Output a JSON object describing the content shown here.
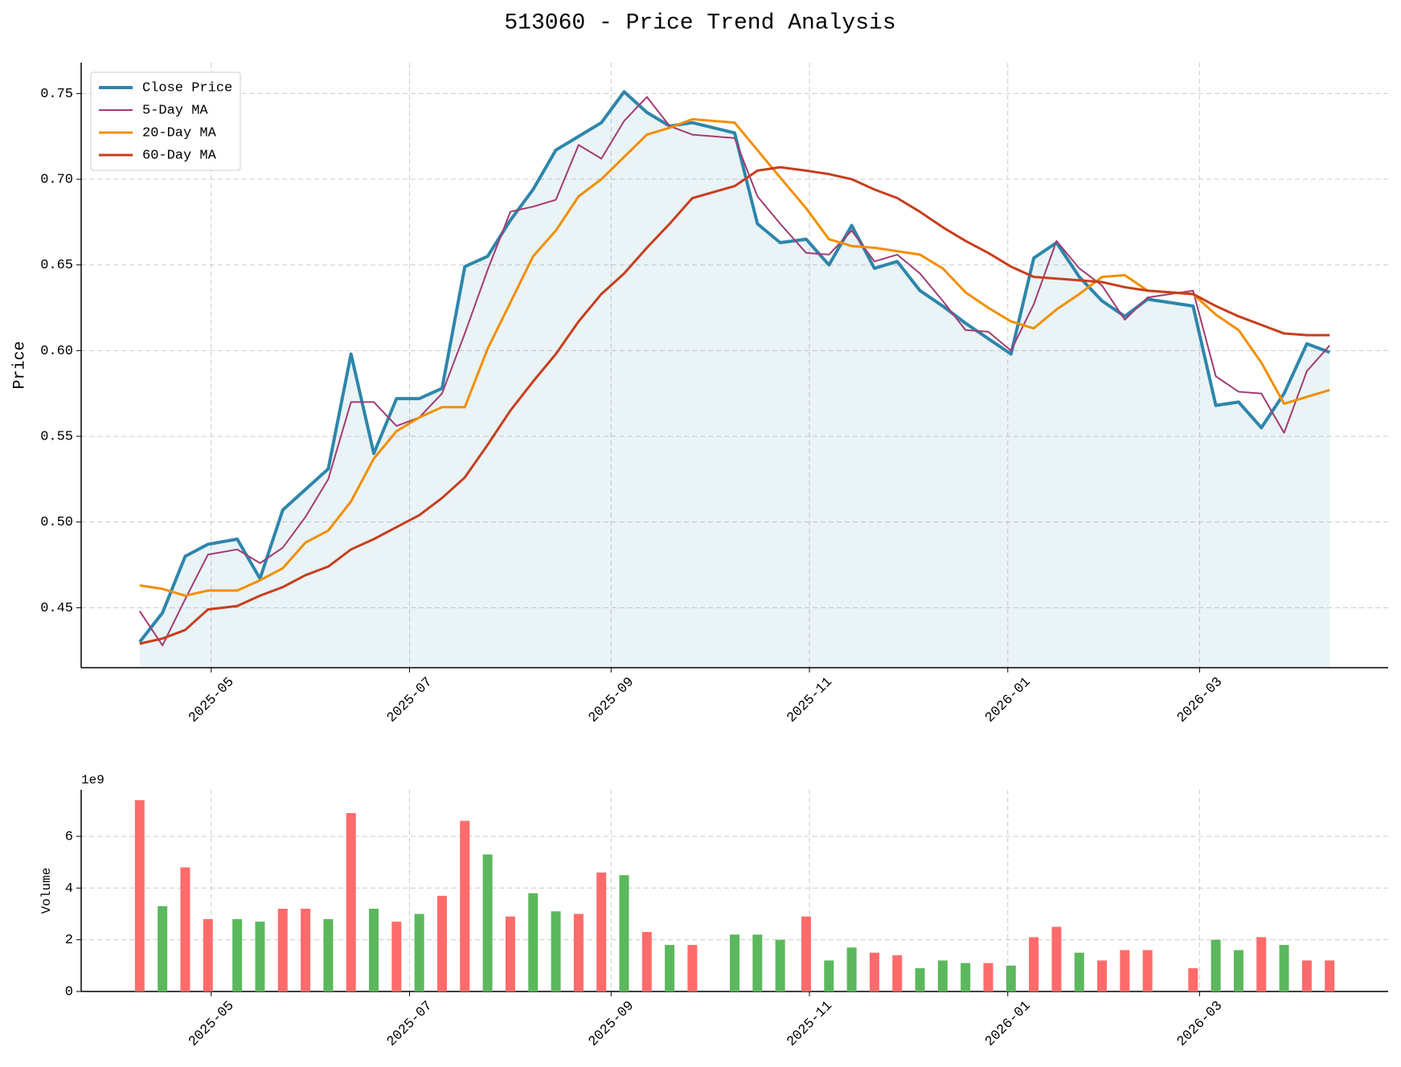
{
  "chart_data": [
    {
      "type": "line",
      "title": "513060 - Price Trend Analysis",
      "y_label": "Price",
      "grid": true,
      "legend": "upper left",
      "fill_under": "Close Price",
      "x": [
        "2025-04-09",
        "2025-04-16",
        "2025-04-23",
        "2025-04-30",
        "2025-05-09",
        "2025-05-16",
        "2025-05-23",
        "2025-05-30",
        "2025-06-06",
        "2025-06-13",
        "2025-06-20",
        "2025-06-27",
        "2025-07-04",
        "2025-07-11",
        "2025-07-18",
        "2025-07-25",
        "2025-08-01",
        "2025-08-08",
        "2025-08-15",
        "2025-08-22",
        "2025-08-29",
        "2025-09-05",
        "2025-09-12",
        "2025-09-19",
        "2025-09-26",
        "2025-10-09",
        "2025-10-16",
        "2025-10-23",
        "2025-10-31",
        "2025-11-07",
        "2025-11-14",
        "2025-11-21",
        "2025-11-28",
        "2025-12-05",
        "2025-12-12",
        "2025-12-19",
        "2025-12-26",
        "2026-01-02",
        "2026-01-09",
        "2026-01-16",
        "2026-01-23",
        "2026-01-30",
        "2026-02-06",
        "2026-02-13",
        "2026-02-27",
        "2026-03-06",
        "2026-03-13",
        "2026-03-20",
        "2026-03-27",
        "2026-04-03",
        "2026-04-10"
      ],
      "series": [
        {
          "name": "Close Price",
          "color": "#2e86ab",
          "width": 4,
          "values": [
            0.43,
            0.447,
            0.48,
            0.487,
            0.49,
            0.467,
            0.507,
            0.519,
            0.531,
            0.598,
            0.54,
            0.572,
            0.572,
            0.578,
            0.649,
            0.655,
            0.676,
            0.694,
            0.717,
            0.725,
            0.733,
            0.751,
            0.739,
            0.731,
            0.733,
            0.727,
            0.674,
            0.663,
            0.665,
            0.65,
            0.673,
            0.648,
            0.652,
            0.635,
            0.626,
            0.616,
            0.607,
            0.598,
            0.654,
            0.663,
            0.643,
            0.629,
            0.62,
            0.63,
            0.626,
            0.568,
            0.57,
            0.555,
            0.575,
            0.604,
            0.599
          ]
        },
        {
          "name": "5-Day MA",
          "color": "#a23b72",
          "width": 2,
          "values": [
            0.448,
            0.428,
            0.455,
            0.481,
            0.484,
            0.476,
            0.485,
            0.503,
            0.525,
            0.57,
            0.57,
            0.556,
            0.561,
            0.575,
            0.61,
            0.647,
            0.681,
            0.684,
            0.688,
            0.72,
            0.712,
            0.734,
            0.748,
            0.731,
            0.726,
            0.724,
            0.69,
            0.674,
            0.657,
            0.656,
            0.67,
            0.652,
            0.656,
            0.645,
            0.629,
            0.612,
            0.611,
            0.6,
            0.627,
            0.664,
            0.648,
            0.638,
            0.618,
            0.631,
            0.635,
            0.585,
            0.576,
            0.575,
            0.552,
            0.588,
            0.603
          ]
        },
        {
          "name": "20-Day MA",
          "color": "#f18f01",
          "width": 3,
          "values": [
            0.463,
            0.461,
            0.457,
            0.46,
            0.46,
            0.466,
            0.473,
            0.488,
            0.495,
            0.512,
            0.537,
            0.553,
            0.561,
            0.567,
            0.567,
            0.601,
            0.628,
            0.655,
            0.67,
            0.69,
            0.7,
            0.713,
            0.726,
            0.73,
            0.735,
            0.733,
            0.717,
            0.701,
            0.683,
            0.665,
            0.661,
            0.66,
            0.658,
            0.656,
            0.648,
            0.634,
            0.625,
            0.617,
            0.613,
            0.624,
            0.633,
            0.643,
            0.644,
            0.635,
            0.633,
            0.621,
            0.612,
            0.593,
            0.569,
            0.573,
            0.577
          ]
        },
        {
          "name": "60-Day MA",
          "color": "#c73e1d",
          "width": 3,
          "values": [
            0.429,
            0.432,
            0.437,
            0.449,
            0.451,
            0.457,
            0.462,
            0.469,
            0.474,
            0.484,
            0.49,
            0.497,
            0.504,
            0.514,
            0.526,
            0.545,
            0.565,
            0.582,
            0.598,
            0.617,
            0.633,
            0.645,
            0.66,
            0.674,
            0.689,
            0.696,
            0.705,
            0.707,
            0.705,
            0.703,
            0.7,
            0.694,
            0.689,
            0.681,
            0.672,
            0.664,
            0.657,
            0.649,
            0.643,
            0.642,
            0.641,
            0.64,
            0.637,
            0.635,
            0.633,
            0.626,
            0.62,
            0.615,
            0.61,
            0.609,
            0.609
          ]
        }
      ],
      "xlim": [
        "2025-03-22",
        "2026-04-28"
      ],
      "xticks": [
        {
          "value": "2025-05-01",
          "label": "2025-05"
        },
        {
          "value": "2025-07-01",
          "label": "2025-07"
        },
        {
          "value": "2025-09-01",
          "label": "2025-09"
        },
        {
          "value": "2025-11-01",
          "label": "2025-11"
        },
        {
          "value": "2026-01-01",
          "label": "2026-01"
        },
        {
          "value": "2026-03-01",
          "label": "2026-03"
        }
      ],
      "ylim": [
        0.415,
        0.768
      ],
      "yticks": [
        {
          "value": 0.45,
          "label": "0.45"
        },
        {
          "value": 0.5,
          "label": "0.50"
        },
        {
          "value": 0.55,
          "label": "0.55"
        },
        {
          "value": 0.6,
          "label": "0.60"
        },
        {
          "value": 0.65,
          "label": "0.65"
        },
        {
          "value": 0.7,
          "label": "0.70"
        },
        {
          "value": 0.75,
          "label": "0.75"
        }
      ]
    },
    {
      "type": "bar",
      "y_label": "Volume",
      "offset_label": "1e9",
      "grid": true,
      "x": [
        "2025-04-09",
        "2025-04-16",
        "2025-04-23",
        "2025-04-30",
        "2025-05-09",
        "2025-05-16",
        "2025-05-23",
        "2025-05-30",
        "2025-06-06",
        "2025-06-13",
        "2025-06-20",
        "2025-06-27",
        "2025-07-04",
        "2025-07-11",
        "2025-07-18",
        "2025-07-25",
        "2025-08-01",
        "2025-08-08",
        "2025-08-15",
        "2025-08-22",
        "2025-08-29",
        "2025-09-05",
        "2025-09-12",
        "2025-09-19",
        "2025-09-26",
        "2025-10-09",
        "2025-10-16",
        "2025-10-23",
        "2025-10-31",
        "2025-11-07",
        "2025-11-14",
        "2025-11-21",
        "2025-11-28",
        "2025-12-05",
        "2025-12-12",
        "2025-12-19",
        "2025-12-26",
        "2026-01-02",
        "2026-01-09",
        "2026-01-16",
        "2026-01-23",
        "2026-01-30",
        "2026-02-06",
        "2026-02-13",
        "2026-02-27",
        "2026-03-06",
        "2026-03-13",
        "2026-03-20",
        "2026-03-27",
        "2026-04-03",
        "2026-04-10"
      ],
      "values": [
        7.4,
        3.3,
        4.8,
        2.8,
        2.8,
        2.7,
        3.2,
        3.2,
        2.8,
        6.9,
        3.2,
        2.7,
        3.0,
        3.7,
        6.6,
        5.3,
        2.9,
        3.8,
        3.1,
        3.0,
        4.6,
        4.5,
        2.3,
        1.8,
        1.8,
        2.2,
        2.2,
        2.0,
        2.9,
        1.2,
        1.7,
        1.5,
        1.4,
        0.9,
        1.2,
        1.1,
        1.1,
        1.0,
        2.1,
        2.5,
        1.5,
        1.2,
        1.6,
        1.6,
        0.9,
        2.0,
        1.6,
        2.1,
        1.8,
        1.2,
        1.2
      ],
      "colors": [
        "#ff6b6b",
        "#5cb85c",
        "#ff6b6b",
        "#ff6b6b",
        "#5cb85c",
        "#5cb85c",
        "#ff6b6b",
        "#ff6b6b",
        "#5cb85c",
        "#ff6b6b",
        "#5cb85c",
        "#ff6b6b",
        "#5cb85c",
        "#ff6b6b",
        "#ff6b6b",
        "#5cb85c",
        "#ff6b6b",
        "#5cb85c",
        "#5cb85c",
        "#ff6b6b",
        "#ff6b6b",
        "#5cb85c",
        "#ff6b6b",
        "#5cb85c",
        "#ff6b6b",
        "#5cb85c",
        "#5cb85c",
        "#5cb85c",
        "#ff6b6b",
        "#5cb85c",
        "#5cb85c",
        "#ff6b6b",
        "#ff6b6b",
        "#5cb85c",
        "#5cb85c",
        "#5cb85c",
        "#ff6b6b",
        "#5cb85c",
        "#ff6b6b",
        "#ff6b6b",
        "#5cb85c",
        "#ff6b6b",
        "#ff6b6b",
        "#ff6b6b",
        "#ff6b6b",
        "#5cb85c",
        "#5cb85c",
        "#ff6b6b",
        "#5cb85c",
        "#ff6b6b",
        "#ff6b6b"
      ],
      "xlim": [
        "2025-03-22",
        "2026-04-28"
      ],
      "xticks": [
        {
          "value": "2025-05-01",
          "label": "2025-05"
        },
        {
          "value": "2025-07-01",
          "label": "2025-07"
        },
        {
          "value": "2025-09-01",
          "label": "2025-09"
        },
        {
          "value": "2025-11-01",
          "label": "2025-11"
        },
        {
          "value": "2026-01-01",
          "label": "2026-01"
        },
        {
          "value": "2026-03-01",
          "label": "2026-03"
        }
      ],
      "ylim": [
        0,
        7.8
      ],
      "yticks": [
        0,
        2,
        4,
        6
      ]
    }
  ]
}
